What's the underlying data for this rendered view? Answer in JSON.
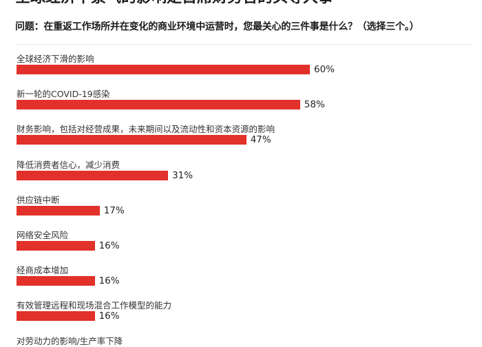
{
  "title": "全球经济不景气的影响是首席财务官的头等大事",
  "question": "问题：在重返工作场所并在变化的商业环境中运营时，您最关心的三件事是什么？（选择三个。）",
  "chart_data": {
    "type": "bar",
    "orientation": "horizontal",
    "bar_color": "#e2302a",
    "categories": [
      "全球经济下滑的影响",
      "新一轮的COVID-19感染",
      "财务影响，包括对经营成果，未来期间以及流动性和资本资源的影响",
      "降低消费者信心，减少消费",
      "供应链中断",
      "网络安全风险",
      "经商成本增加",
      "有效管理远程和现场混合工作模型的能力",
      "对劳动力的影响/生产率下降"
    ],
    "values": [
      60,
      58,
      47,
      31,
      17,
      16,
      16,
      16,
      null
    ],
    "value_labels": [
      "60%",
      "58%",
      "47%",
      "31%",
      "17%",
      "16%",
      "16%",
      "16%",
      ""
    ],
    "xlim": [
      0,
      100
    ],
    "grid": false
  }
}
